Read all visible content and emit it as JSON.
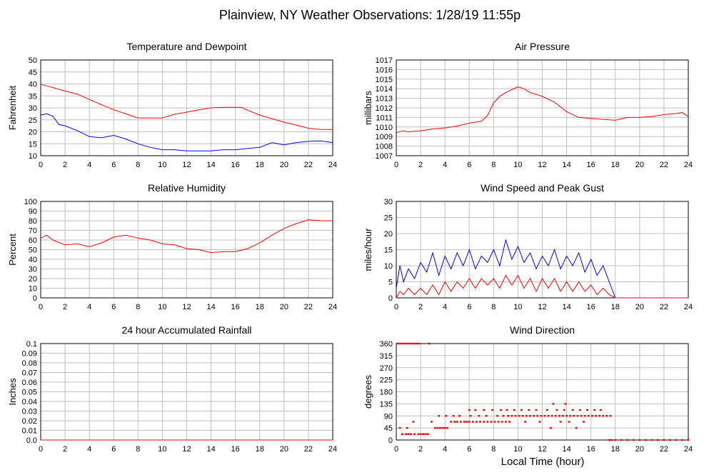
{
  "page_title": "Plainview, NY Weather Observations: 1/28/19 11:55p",
  "x_axis_label": "Local Time (hour)",
  "colors": {
    "red": "#ff0000",
    "blue": "#0000ff",
    "grid": "#bfbfbf"
  },
  "chart_data": [
    {
      "id": "temp",
      "type": "line",
      "title": "Temperature and Dewpoint",
      "ylabel": "Fahrenheit",
      "xlim": [
        0,
        24
      ],
      "ylim": [
        10,
        50
      ],
      "xticks": [
        0,
        2,
        4,
        6,
        8,
        10,
        12,
        14,
        16,
        18,
        20,
        22,
        24
      ],
      "yticks": [
        10,
        15,
        20,
        25,
        30,
        35,
        40,
        45,
        50
      ],
      "grid": true,
      "series": [
        {
          "color": "#ff0000",
          "x": [
            0,
            1,
            2,
            3,
            4,
            5,
            6,
            7,
            8,
            9,
            10,
            11,
            12,
            13,
            14,
            15,
            16,
            16.5,
            17,
            18,
            19,
            20,
            21,
            22,
            23,
            24
          ],
          "y": [
            39.8,
            38.5,
            37,
            35.8,
            33.5,
            31.3,
            29.2,
            27.5,
            25.8,
            25.8,
            25.8,
            27.3,
            28.2,
            29.2,
            30,
            30.2,
            30.2,
            30.2,
            29,
            27,
            25.5,
            24,
            22.8,
            21.5,
            21,
            21
          ]
        },
        {
          "color": "#0000ff",
          "x": [
            0,
            0.5,
            1,
            1.5,
            2,
            3,
            4,
            5,
            6,
            7,
            8,
            9,
            10,
            11,
            12,
            13,
            14,
            15,
            16,
            17,
            18,
            19,
            20,
            21,
            22,
            23,
            24
          ],
          "y": [
            27,
            27.5,
            26.5,
            23,
            22.5,
            20.5,
            18,
            17.5,
            18.5,
            17,
            15,
            13.5,
            12.5,
            12.5,
            12,
            12,
            12,
            12.5,
            12.5,
            13,
            13.5,
            15.5,
            14.5,
            15.5,
            16,
            16.2,
            15.5
          ]
        }
      ]
    },
    {
      "id": "pressure",
      "type": "line",
      "title": "Air Pressure",
      "ylabel": "millibars",
      "xlim": [
        0,
        24
      ],
      "ylim": [
        1007,
        1017
      ],
      "xticks": [
        0,
        2,
        4,
        6,
        8,
        10,
        12,
        14,
        16,
        18,
        20,
        22,
        24
      ],
      "yticks": [
        1007,
        1008,
        1009,
        1010,
        1011,
        1012,
        1013,
        1014,
        1015,
        1016,
        1017
      ],
      "grid": true,
      "series": [
        {
          "color": "#ff0000",
          "x": [
            0,
            0.5,
            1,
            2,
            3,
            4,
            5,
            6,
            7,
            7.5,
            8,
            8.5,
            9,
            9.5,
            10,
            10.5,
            11,
            12,
            13,
            14,
            15,
            16,
            17,
            18,
            19,
            20,
            21,
            22,
            23,
            23.5,
            24
          ],
          "y": [
            1009.4,
            1009.6,
            1009.5,
            1009.6,
            1009.8,
            1009.9,
            1010.1,
            1010.4,
            1010.6,
            1011.2,
            1012.5,
            1013.2,
            1013.6,
            1013.9,
            1014.2,
            1014,
            1013.6,
            1013.2,
            1012.6,
            1011.6,
            1011,
            1010.9,
            1010.8,
            1010.7,
            1011,
            1011,
            1011.1,
            1011.3,
            1011.4,
            1011.5,
            1011.1
          ]
        }
      ]
    },
    {
      "id": "humidity",
      "type": "line",
      "title": "Relative Humidity",
      "ylabel": "Percent",
      "xlim": [
        0,
        24
      ],
      "ylim": [
        0,
        100
      ],
      "xticks": [
        0,
        2,
        4,
        6,
        8,
        10,
        12,
        14,
        16,
        18,
        20,
        22,
        24
      ],
      "yticks": [
        0,
        10,
        20,
        30,
        40,
        50,
        60,
        70,
        80,
        90,
        100
      ],
      "grid": true,
      "series": [
        {
          "color": "#ff0000",
          "x": [
            0,
            0.5,
            1,
            2,
            3,
            4,
            5,
            6,
            7,
            8,
            9,
            10,
            11,
            12,
            13,
            14,
            15,
            16,
            17,
            18,
            19,
            20,
            21,
            22,
            23,
            24
          ],
          "y": [
            62,
            65,
            60,
            55,
            56,
            53,
            57,
            63,
            65,
            62,
            60,
            56,
            55,
            51,
            50,
            47,
            48,
            48,
            51,
            57,
            65,
            72,
            77,
            81,
            80,
            80
          ]
        }
      ]
    },
    {
      "id": "wind",
      "type": "line",
      "title": "Wind Speed and Peak Gust",
      "ylabel": "miles/hour",
      "xlim": [
        0,
        24
      ],
      "ylim": [
        0,
        30
      ],
      "xticks": [
        0,
        2,
        4,
        6,
        8,
        10,
        12,
        14,
        16,
        18,
        20,
        22,
        24
      ],
      "yticks": [
        0,
        5,
        10,
        15,
        20,
        25,
        30
      ],
      "grid": true,
      "series": [
        {
          "color": "#0000ff",
          "x": [
            0,
            0.3,
            0.6,
            1,
            1.5,
            2,
            2.5,
            3,
            3.5,
            4,
            4.5,
            5,
            5.5,
            6,
            6.5,
            7,
            7.5,
            8,
            8.5,
            9,
            9.5,
            10,
            10.5,
            11,
            11.5,
            12,
            12.5,
            13,
            13.5,
            14,
            14.5,
            15,
            15.5,
            16,
            16.5,
            17,
            17.5,
            18,
            24
          ],
          "y": [
            3,
            10,
            5,
            9,
            6,
            11,
            8,
            14,
            7,
            13,
            9,
            14,
            10,
            15,
            9,
            13,
            11,
            15,
            10,
            18,
            12,
            16,
            11,
            14,
            9,
            13,
            10,
            15,
            9,
            13,
            10,
            14,
            8,
            12,
            7,
            10,
            5,
            0,
            0
          ]
        },
        {
          "color": "#ff0000",
          "x": [
            0,
            0.3,
            0.6,
            1,
            1.5,
            2,
            2.5,
            3,
            3.5,
            4,
            4.5,
            5,
            5.5,
            6,
            6.5,
            7,
            7.5,
            8,
            8.5,
            9,
            9.5,
            10,
            10.5,
            11,
            11.5,
            12,
            12.5,
            13,
            13.5,
            14,
            14.5,
            15,
            15.5,
            16,
            16.5,
            17,
            17.5,
            18,
            24
          ],
          "y": [
            0,
            2,
            1,
            3,
            1,
            3,
            1,
            4,
            1,
            5,
            2,
            5,
            3,
            6,
            3,
            6,
            4,
            6,
            3,
            7,
            4,
            7,
            3,
            6,
            2,
            6,
            3,
            6,
            2,
            5,
            2,
            5,
            2,
            4,
            1,
            3,
            1,
            0,
            0
          ]
        }
      ]
    },
    {
      "id": "rain",
      "type": "line",
      "title": "24 hour Accumulated Rainfall",
      "ylabel": "Inches",
      "xlim": [
        0,
        24
      ],
      "ylim": [
        0,
        0.1
      ],
      "xticks": [
        0,
        2,
        4,
        6,
        8,
        10,
        12,
        14,
        16,
        18,
        20,
        22,
        24
      ],
      "yticks": [
        0.0,
        0.01,
        0.02,
        0.03,
        0.04,
        0.05,
        0.06,
        0.07,
        0.08,
        0.09,
        0.1
      ],
      "ytick_labels": [
        "0.0",
        "0.01",
        "0.02",
        "0.03",
        "0.04",
        "0.05",
        "0.06",
        "0.07",
        "0.08",
        "0.09",
        "0.1"
      ],
      "grid": true,
      "series": [
        {
          "color": "#ff0000",
          "x": [
            0,
            24
          ],
          "y": [
            0,
            0
          ]
        }
      ]
    },
    {
      "id": "direction",
      "type": "scatter",
      "title": "Wind Direction",
      "ylabel": "degrees",
      "xlim": [
        0,
        24
      ],
      "ylim": [
        0,
        360
      ],
      "xticks": [
        0,
        2,
        4,
        6,
        8,
        10,
        12,
        14,
        16,
        18,
        20,
        22,
        24
      ],
      "yticks": [
        0,
        45,
        90,
        135,
        180,
        225,
        270,
        315,
        360
      ],
      "grid": true,
      "series": [
        {
          "color": "#ff0000",
          "x": [
            0.1,
            0.3,
            0.5,
            0.7,
            0.9,
            1.1,
            1.3,
            1.5,
            1.7,
            1.9,
            2.7,
            0.5,
            0.8,
            1.0,
            1.2,
            1.5,
            1.8,
            2.0,
            2.2,
            2.4,
            2.6,
            0.3,
            0.9,
            1.4,
            2.9,
            3.2,
            3.4,
            3.6,
            3.8,
            4.0,
            4.2,
            4.5,
            4.8,
            5.0,
            5.3,
            5.6,
            5.8,
            6.0,
            6.3,
            6.6,
            6.9,
            7.2,
            7.5,
            7.8,
            8.1,
            8.4,
            8.7,
            9.0,
            3.5,
            4.1,
            4.7,
            5.2,
            6.1,
            6.8,
            7.4,
            8.3,
            8.8,
            9.2,
            9.5,
            9.8,
            10.1,
            10.4,
            10.7,
            11.0,
            11.3,
            11.6,
            11.9,
            12.2,
            12.5,
            12.8,
            13.1,
            13.4,
            13.7,
            14.0,
            14.3,
            14.6,
            14.9,
            15.2,
            15.5,
            15.8,
            16.1,
            16.4,
            16.7,
            17.0,
            17.3,
            17.6,
            6.0,
            6.5,
            7.2,
            7.9,
            8.6,
            9.1,
            9.7,
            10.3,
            10.9,
            11.5,
            12.4,
            13.2,
            13.8,
            14.5,
            15.1,
            15.7,
            16.3,
            16.8,
            9.3,
            10.6,
            11.8,
            12.7,
            13.5,
            14.2,
            14.8,
            15.4,
            12.9,
            13.9,
            17.5,
            17.7,
            18.0,
            18.5,
            19.0,
            19.5,
            20.0,
            20.5,
            21.0,
            21.5,
            22.0,
            22.5,
            23.0,
            23.5,
            24.0
          ],
          "y": [
            360,
            360,
            360,
            360,
            360,
            360,
            360,
            360,
            360,
            360,
            360,
            22,
            22,
            22,
            22,
            22,
            22,
            22,
            22,
            22,
            22,
            45,
            45,
            68,
            68,
            45,
            45,
            45,
            45,
            45,
            45,
            68,
            68,
            68,
            68,
            68,
            68,
            68,
            68,
            68,
            68,
            68,
            68,
            68,
            68,
            68,
            68,
            68,
            90,
            90,
            90,
            90,
            90,
            90,
            90,
            90,
            90,
            90,
            90,
            90,
            90,
            90,
            90,
            90,
            90,
            90,
            90,
            90,
            90,
            90,
            90,
            90,
            90,
            90,
            90,
            90,
            90,
            90,
            90,
            90,
            90,
            90,
            90,
            90,
            90,
            90,
            112,
            112,
            112,
            112,
            112,
            112,
            112,
            112,
            112,
            112,
            112,
            112,
            112,
            112,
            112,
            112,
            112,
            112,
            68,
            68,
            68,
            45,
            68,
            68,
            45,
            68,
            135,
            135,
            0,
            0,
            0,
            0,
            0,
            0,
            0,
            0,
            0,
            0,
            0,
            0,
            0,
            0,
            0
          ]
        }
      ]
    }
  ]
}
